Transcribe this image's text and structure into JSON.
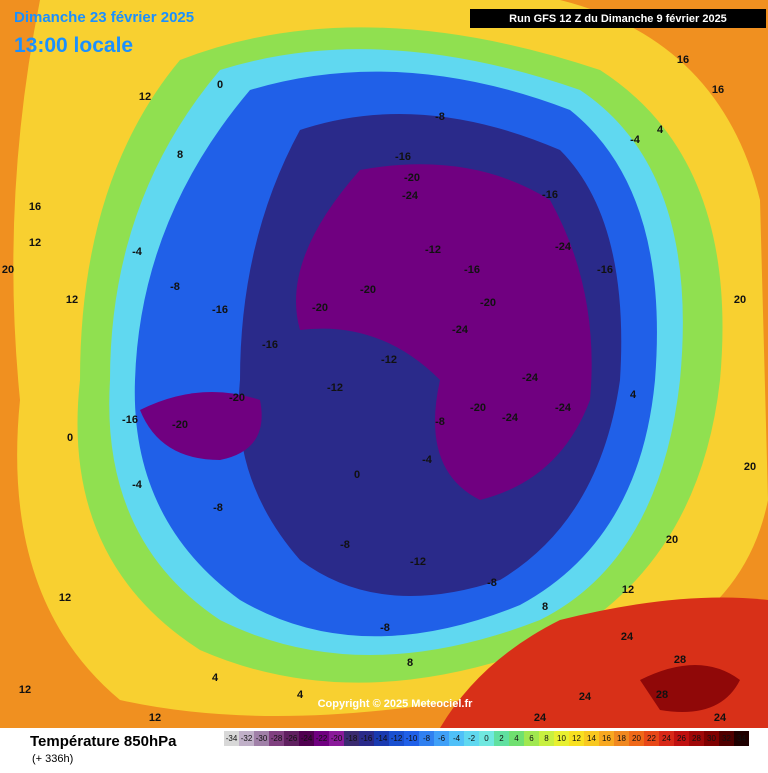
{
  "header": {
    "date": "Dimanche 23 février 2025",
    "time": "13:00 locale",
    "run": "Run GFS 12 Z du Dimanche 9 février 2025"
  },
  "copyright": "Copyright © 2025 Meteociel.fr",
  "legend": {
    "title": "Température 850hPa",
    "subtitle": "(+ 336h)",
    "ticks": [
      -34,
      -32,
      -30,
      -28,
      -26,
      -24,
      -22,
      -20,
      -18,
      -16,
      -14,
      -12,
      -10,
      -8,
      -6,
      -4,
      -2,
      0,
      2,
      4,
      6,
      8,
      10,
      12,
      14,
      16,
      18,
      20,
      22,
      24,
      26,
      28,
      30,
      32,
      34
    ],
    "colors": [
      "#d8d8d8",
      "#c0b0c8",
      "#a080a8",
      "#804080",
      "#602060",
      "#500050",
      "#700080",
      "#8a1a9a",
      "#3a2a70",
      "#2a2a8a",
      "#1a3ab0",
      "#1a50d0",
      "#2060e8",
      "#3080f0",
      "#40a0f8",
      "#50c0f8",
      "#60d8f0",
      "#70e8e0",
      "#60e0a0",
      "#70e070",
      "#a0e850",
      "#c8f040",
      "#e8f030",
      "#f8e020",
      "#f8c820",
      "#f8a820",
      "#f08820",
      "#f06818",
      "#e84818",
      "#d82818",
      "#c01010",
      "#a00808",
      "#800000",
      "#500000",
      "#200000"
    ]
  },
  "contour_labels": [
    0,
    12,
    8,
    16,
    12,
    20,
    12,
    -4,
    -8,
    -16,
    -16,
    -20,
    -20,
    -8,
    -16,
    -20,
    -24,
    -12,
    -16,
    -20,
    -24,
    -16,
    -24,
    -16,
    -24,
    -24,
    -24,
    -20,
    -4,
    4,
    16,
    16,
    20,
    20,
    20,
    12,
    24,
    28,
    28,
    24,
    24,
    24,
    -16,
    -20,
    -20,
    -4,
    -8,
    -8,
    -12,
    -8,
    -8,
    8,
    8,
    4,
    4,
    12,
    12,
    0,
    0,
    -4,
    -8,
    -12,
    -12,
    4,
    12
  ]
}
